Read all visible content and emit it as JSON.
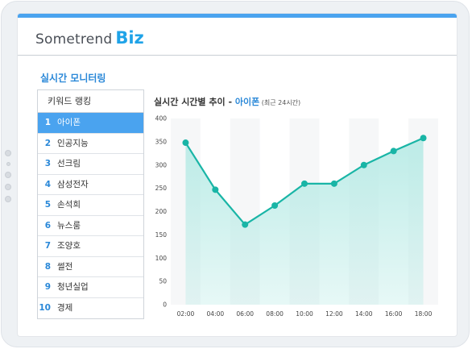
{
  "brand": {
    "word": "Sometrend",
    "suffix": "Biz"
  },
  "section_title": "실시간 모니터링",
  "ranking": {
    "header": "키워드 랭킹",
    "items": [
      {
        "rank": "1",
        "label": "아이폰"
      },
      {
        "rank": "2",
        "label": "인공지능"
      },
      {
        "rank": "3",
        "label": "선크림"
      },
      {
        "rank": "4",
        "label": "삼성전자"
      },
      {
        "rank": "5",
        "label": "손석희"
      },
      {
        "rank": "6",
        "label": "뉴스룸"
      },
      {
        "rank": "7",
        "label": "조양호"
      },
      {
        "rank": "8",
        "label": "썰전"
      },
      {
        "rank": "9",
        "label": "청년실업"
      },
      {
        "rank": "10",
        "label": "경제"
      }
    ],
    "active_index": 0
  },
  "chart_title": {
    "main": "실시간 시간별 추이 - ",
    "keyword": "아이폰",
    "sub": " (최근 24시간)"
  },
  "colors": {
    "accent": "#4aa3ef",
    "line": "#19b5a6",
    "area": "#b9ebe6"
  },
  "chart_data": {
    "type": "area",
    "categories": [
      "02:00",
      "04:00",
      "06:00",
      "08:00",
      "10:00",
      "12:00",
      "14:00",
      "16:00",
      "18:00"
    ],
    "series": [
      {
        "values": [
          348,
          247,
          172,
          213,
          260,
          260,
          300,
          330,
          358
        ]
      }
    ],
    "yticks": [
      "0",
      "50",
      "100",
      "150",
      "200",
      "250",
      "300",
      "350",
      "400"
    ],
    "ylim": [
      0,
      400
    ],
    "grid": "alternating-columns"
  }
}
